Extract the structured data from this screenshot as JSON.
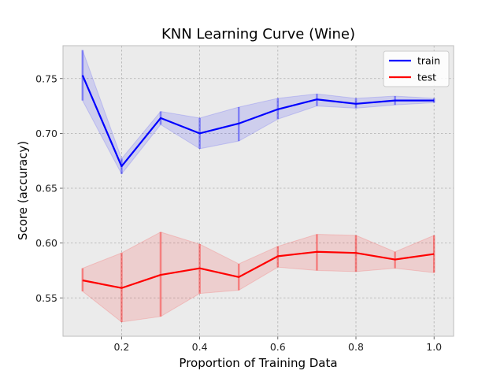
{
  "chart_data": {
    "type": "line",
    "title": "KNN Learning Curve (Wine)",
    "xlabel": "Proportion of Training Data",
    "ylabel": "Score (accuracy)",
    "xlim": [
      0.05,
      1.05
    ],
    "ylim": [
      0.515,
      0.78
    ],
    "xticks": [
      0.2,
      0.4,
      0.6,
      0.8,
      1.0
    ],
    "xtick_labels": [
      "0.2",
      "0.4",
      "0.6",
      "0.8",
      "1.0"
    ],
    "yticks": [
      0.55,
      0.6,
      0.65,
      0.7,
      0.75
    ],
    "ytick_labels": [
      "0.55",
      "0.60",
      "0.65",
      "0.70",
      "0.75"
    ],
    "grid": true,
    "legend_position": "top-right",
    "x": [
      0.1,
      0.2,
      0.3,
      0.4,
      0.5,
      0.6,
      0.7,
      0.8,
      0.9,
      1.0
    ],
    "series": [
      {
        "name": "train",
        "color": "#0000ff",
        "values": [
          0.753,
          0.67,
          0.714,
          0.7,
          0.709,
          0.722,
          0.731,
          0.727,
          0.73,
          0.73
        ],
        "lower": [
          0.73,
          0.663,
          0.708,
          0.686,
          0.693,
          0.713,
          0.725,
          0.723,
          0.726,
          0.728
        ],
        "upper": [
          0.776,
          0.677,
          0.72,
          0.714,
          0.724,
          0.732,
          0.736,
          0.732,
          0.734,
          0.732
        ]
      },
      {
        "name": "test",
        "color": "#ff0000",
        "values": [
          0.566,
          0.559,
          0.571,
          0.577,
          0.569,
          0.588,
          0.592,
          0.591,
          0.585,
          0.59
        ],
        "lower": [
          0.556,
          0.528,
          0.533,
          0.554,
          0.557,
          0.578,
          0.575,
          0.574,
          0.577,
          0.573
        ],
        "upper": [
          0.577,
          0.591,
          0.61,
          0.599,
          0.581,
          0.597,
          0.608,
          0.607,
          0.592,
          0.607
        ]
      }
    ],
    "colors": {
      "plot_background": "#ebebeb",
      "grid": "#b0b0b0",
      "frame": "#bdbdbd"
    }
  }
}
